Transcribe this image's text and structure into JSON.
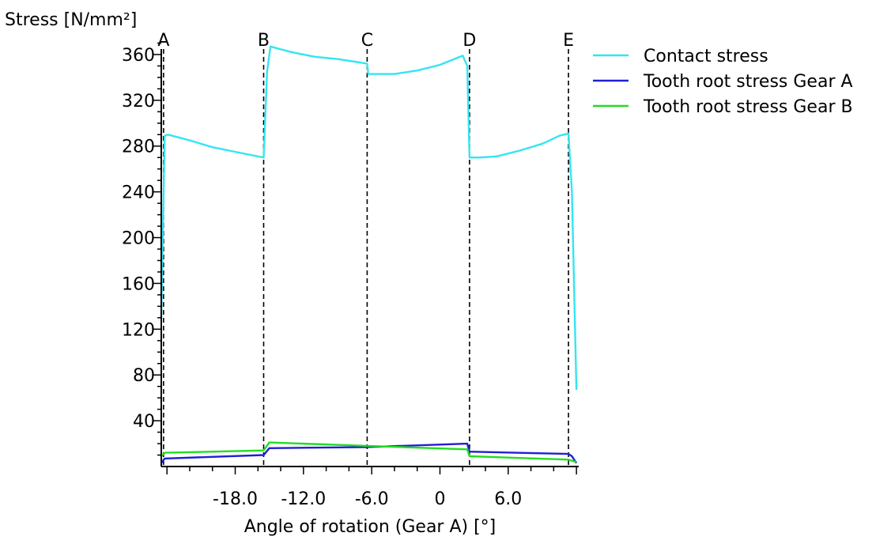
{
  "chart_data": {
    "type": "line",
    "title": "",
    "xlabel": "Angle of rotation (Gear A) [°]",
    "ylabel": "Stress [N/mm²]",
    "xlim": [
      -24.5,
      12.2
    ],
    "ylim": [
      0,
      380
    ],
    "x_ticks": [
      -18.0,
      -12.0,
      -6.0,
      0,
      6.0
    ],
    "x_tick_labels": [
      "-18.0",
      "-12.0",
      "-6.0",
      "0",
      "6.0"
    ],
    "y_ticks": [
      40,
      80,
      120,
      160,
      200,
      240,
      280,
      320,
      360
    ],
    "y_tick_labels": [
      "40",
      "80",
      "120",
      "160",
      "200",
      "240",
      "280",
      "320",
      "360"
    ],
    "grid": false,
    "legend_position": "top-right",
    "markers": [
      {
        "label": "A",
        "x": -24.3
      },
      {
        "label": "B",
        "x": -15.5
      },
      {
        "label": "C",
        "x": -6.4
      },
      {
        "label": "D",
        "x": 2.6
      },
      {
        "label": "E",
        "x": 11.3
      }
    ],
    "series": [
      {
        "name": "Contact stress",
        "color": "#33e5f2",
        "x": [
          -24.5,
          -24.2,
          -23.9,
          -22.0,
          -20.0,
          -18.0,
          -16.0,
          -15.5,
          -15.2,
          -14.9,
          -13.0,
          -11.0,
          -9.0,
          -7.0,
          -6.4,
          -6.3,
          -4.0,
          -2.0,
          0.0,
          2.0,
          2.4,
          2.6,
          3.5,
          5.0,
          7.0,
          9.0,
          10.5,
          11.3,
          11.6,
          12.0
        ],
        "values": [
          130,
          289,
          290,
          285,
          279,
          275,
          271,
          270,
          345,
          367,
          362,
          358,
          356,
          353,
          352,
          343,
          343,
          346,
          351,
          359,
          350,
          270,
          270,
          271,
          276,
          282,
          289,
          291,
          240,
          67
        ]
      },
      {
        "name": "Tooth root stress Gear A",
        "color": "#1f1fd6",
        "x": [
          -24.5,
          -24.2,
          -15.5,
          -15.0,
          -6.4,
          2.4,
          2.6,
          11.3,
          11.6,
          12.0
        ],
        "values": [
          3,
          7,
          10,
          16,
          17,
          20,
          13,
          11,
          9,
          3
        ]
      },
      {
        "name": "Tooth root stress Gear B",
        "color": "#22dd22",
        "x": [
          -24.5,
          -24.2,
          -15.5,
          -15.0,
          -6.4,
          2.4,
          2.6,
          11.3,
          11.6,
          12.0
        ],
        "values": [
          9,
          12,
          14,
          21,
          18,
          15,
          9,
          6,
          5,
          4
        ]
      }
    ]
  }
}
